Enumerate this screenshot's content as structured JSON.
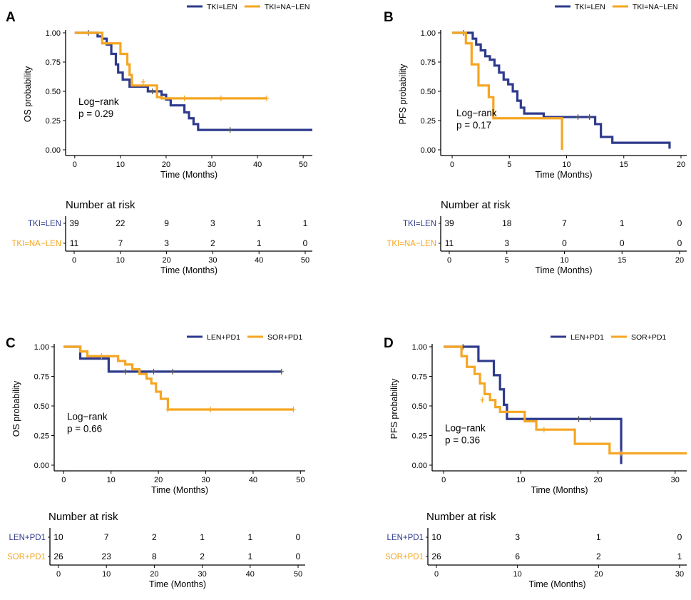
{
  "colors": {
    "blue": "#2e3a8c",
    "orange": "#f5a623"
  },
  "chart_data": [
    {
      "type": "line",
      "panel": "A",
      "title": "",
      "ylabel": "OS probability",
      "xlabel": "Time (Months)",
      "xlim": [
        -2,
        52
      ],
      "ylim": [
        0,
        1
      ],
      "xticks": [
        0,
        10,
        20,
        30,
        40,
        50
      ],
      "yticks": [
        0,
        0.25,
        0.5,
        0.75,
        1
      ],
      "ytick_labels": [
        "0.00",
        "0.25",
        "0.50",
        "0.75",
        "1.00"
      ],
      "logrank": {
        "line1": "Log−rank",
        "line2": "p = 0.29"
      },
      "legend": [
        "TKI=LEN",
        "TKI=NA−LEN"
      ],
      "series": [
        {
          "name": "TKI=LEN",
          "color": "blue",
          "steps": [
            [
              0,
              1
            ],
            [
              4,
              1
            ],
            [
              5,
              0.97
            ],
            [
              6,
              0.95
            ],
            [
              7,
              0.9
            ],
            [
              8,
              0.82
            ],
            [
              9,
              0.73
            ],
            [
              9.5,
              0.66
            ],
            [
              10.5,
              0.6
            ],
            [
              12,
              0.54
            ],
            [
              16,
              0.5
            ],
            [
              19,
              0.47
            ],
            [
              20,
              0.43
            ],
            [
              21,
              0.38
            ],
            [
              24,
              0.32
            ],
            [
              25,
              0.27
            ],
            [
              26,
              0.22
            ],
            [
              27,
              0.17
            ],
            [
              52,
              0.17
            ]
          ],
          "censors": [
            [
              3,
              1
            ],
            [
              17,
              0.5
            ],
            [
              34,
              0.17
            ]
          ]
        },
        {
          "name": "TKI=NA−LEN",
          "color": "orange",
          "steps": [
            [
              0,
              1
            ],
            [
              5,
              1
            ],
            [
              6,
              0.91
            ],
            [
              10,
              0.82
            ],
            [
              11.5,
              0.73
            ],
            [
              12,
              0.64
            ],
            [
              12.5,
              0.55
            ],
            [
              18,
              0.45
            ],
            [
              19,
              0.44
            ],
            [
              42,
              0.44
            ]
          ],
          "censors": [
            [
              15,
              0.58
            ],
            [
              24,
              0.44
            ],
            [
              32,
              0.44
            ],
            [
              42,
              0.44
            ]
          ]
        }
      ],
      "risk": {
        "title": "Number at risk",
        "groups": [
          {
            "label": "TKI=LEN",
            "color": "blue",
            "values": [
              39,
              22,
              9,
              3,
              1,
              1
            ]
          },
          {
            "label": "TKI=NA−LEN",
            "color": "orange",
            "values": [
              11,
              7,
              3,
              2,
              1,
              0
            ]
          }
        ],
        "xticks": [
          0,
          10,
          20,
          30,
          40,
          50
        ],
        "xlabel": "Time (Months)"
      }
    },
    {
      "type": "line",
      "panel": "B",
      "ylabel": "PFS probability",
      "xlabel": "Time (Months)",
      "xlim": [
        -1,
        20.5
      ],
      "ylim": [
        0,
        1
      ],
      "xticks": [
        0,
        5,
        10,
        15,
        20
      ],
      "yticks": [
        0,
        0.25,
        0.5,
        0.75,
        1
      ],
      "ytick_labels": [
        "0.00",
        "0.25",
        "0.50",
        "0.75",
        "1.00"
      ],
      "logrank": {
        "line1": "Log−rank",
        "line2": "p = 0.17"
      },
      "legend": [
        "TKI=LEN",
        "TKI=NA−LEN"
      ],
      "series": [
        {
          "name": "TKI=LEN",
          "color": "blue",
          "steps": [
            [
              0,
              1
            ],
            [
              1.5,
              1
            ],
            [
              1.8,
              0.95
            ],
            [
              2.1,
              0.9
            ],
            [
              2.5,
              0.85
            ],
            [
              2.9,
              0.8
            ],
            [
              3.3,
              0.77
            ],
            [
              3.7,
              0.72
            ],
            [
              4.1,
              0.66
            ],
            [
              4.5,
              0.6
            ],
            [
              4.9,
              0.56
            ],
            [
              5.3,
              0.5
            ],
            [
              5.7,
              0.42
            ],
            [
              6,
              0.36
            ],
            [
              6.3,
              0.31
            ],
            [
              8,
              0.28
            ],
            [
              12.5,
              0.22
            ],
            [
              13,
              0.11
            ],
            [
              14,
              0.06
            ],
            [
              19,
              0.06
            ],
            [
              19,
              0.01
            ]
          ],
          "censors": [
            [
              1,
              1
            ],
            [
              11,
              0.28
            ],
            [
              12,
              0.28
            ]
          ]
        },
        {
          "name": "TKI=NA−LEN",
          "color": "orange",
          "steps": [
            [
              0,
              1
            ],
            [
              1,
              1
            ],
            [
              1.2,
              0.91
            ],
            [
              1.7,
              0.73
            ],
            [
              2.3,
              0.55
            ],
            [
              3.2,
              0.45
            ],
            [
              3.6,
              0.27
            ],
            [
              9.6,
              0.27
            ],
            [
              9.6,
              0
            ]
          ],
          "censors": []
        }
      ],
      "risk": {
        "title": "Number at risk",
        "groups": [
          {
            "label": "TKI=LEN",
            "color": "blue",
            "values": [
              39,
              18,
              7,
              1,
              0
            ]
          },
          {
            "label": "TKI=NA−LEN",
            "color": "orange",
            "values": [
              11,
              3,
              0,
              0,
              0
            ]
          }
        ],
        "xticks": [
          0,
          5,
          10,
          15,
          20
        ],
        "xlabel": "Time (Months)"
      }
    },
    {
      "type": "line",
      "panel": "C",
      "ylabel": "OS probability",
      "xlabel": "Time (Months)",
      "xlim": [
        -2,
        51
      ],
      "ylim": [
        0,
        1
      ],
      "xticks": [
        0,
        10,
        20,
        30,
        40,
        50
      ],
      "yticks": [
        0,
        0.25,
        0.5,
        0.75,
        1
      ],
      "ytick_labels": [
        "0.00",
        "0.25",
        "0.50",
        "0.75",
        "1.00"
      ],
      "logrank": {
        "line1": "Log−rank",
        "line2": "p = 0.66"
      },
      "legend": [
        "LEN+PD1",
        "SOR+PD1"
      ],
      "series": [
        {
          "name": "LEN+PD1",
          "color": "blue",
          "steps": [
            [
              0,
              1
            ],
            [
              3,
              1
            ],
            [
              3.5,
              0.9
            ],
            [
              9.5,
              0.79
            ],
            [
              46,
              0.79
            ]
          ],
          "censors": [
            [
              13,
              0.79
            ],
            [
              16,
              0.79
            ],
            [
              19,
              0.79
            ],
            [
              23,
              0.79
            ],
            [
              46,
              0.79
            ]
          ]
        },
        {
          "name": "SOR+PD1",
          "color": "orange",
          "steps": [
            [
              0,
              1
            ],
            [
              2.5,
              1
            ],
            [
              3.5,
              0.96
            ],
            [
              5,
              0.92
            ],
            [
              11.5,
              0.88
            ],
            [
              13,
              0.85
            ],
            [
              14.5,
              0.81
            ],
            [
              16,
              0.77
            ],
            [
              17.5,
              0.73
            ],
            [
              18.5,
              0.69
            ],
            [
              19.5,
              0.62
            ],
            [
              20.5,
              0.56
            ],
            [
              22,
              0.47
            ],
            [
              48.5,
              0.47
            ]
          ],
          "censors": [
            [
              8,
              0.92
            ],
            [
              22,
              0.47
            ],
            [
              31,
              0.47
            ],
            [
              48.5,
              0.47
            ]
          ]
        }
      ],
      "risk": {
        "title": "Number at risk",
        "groups": [
          {
            "label": "LEN+PD1",
            "color": "blue",
            "values": [
              10,
              7,
              2,
              1,
              1,
              0
            ]
          },
          {
            "label": "SOR+PD1",
            "color": "orange",
            "values": [
              26,
              23,
              8,
              2,
              1,
              0
            ]
          }
        ],
        "xticks": [
          0,
          10,
          20,
          30,
          40,
          50
        ],
        "xlabel": "Time (Months)"
      }
    },
    {
      "type": "line",
      "panel": "D",
      "ylabel": "PFS probability",
      "xlabel": "Time (Months)",
      "xlim": [
        -1.5,
        31.5
      ],
      "ylim": [
        0,
        1
      ],
      "xticks": [
        0,
        10,
        20,
        30
      ],
      "yticks": [
        0,
        0.25,
        0.5,
        0.75,
        1
      ],
      "ytick_labels": [
        "0.00",
        "0.25",
        "0.50",
        "0.75",
        "1.00"
      ],
      "logrank": {
        "line1": "Log−rank",
        "line2": "p = 0.36"
      },
      "legend": [
        "LEN+PD1",
        "SOR+PD1"
      ],
      "series": [
        {
          "name": "LEN+PD1",
          "color": "blue",
          "steps": [
            [
              0,
              1
            ],
            [
              4,
              1
            ],
            [
              4.5,
              0.88
            ],
            [
              6.5,
              0.76
            ],
            [
              7.3,
              0.64
            ],
            [
              7.8,
              0.51
            ],
            [
              8.2,
              0.39
            ],
            [
              23,
              0.39
            ],
            [
              23,
              0.01
            ]
          ],
          "censors": [
            [
              2.5,
              1
            ],
            [
              17.5,
              0.39
            ],
            [
              19,
              0.39
            ]
          ]
        },
        {
          "name": "SOR+PD1",
          "color": "orange",
          "steps": [
            [
              0,
              1
            ],
            [
              2,
              1
            ],
            [
              2.3,
              0.92
            ],
            [
              3,
              0.83
            ],
            [
              4,
              0.77
            ],
            [
              4.7,
              0.69
            ],
            [
              5.3,
              0.6
            ],
            [
              6,
              0.55
            ],
            [
              6.7,
              0.49
            ],
            [
              7.3,
              0.45
            ],
            [
              10.5,
              0.37
            ],
            [
              12,
              0.3
            ],
            [
              17,
              0.18
            ],
            [
              21.5,
              0.1
            ],
            [
              31.5,
              0.1
            ]
          ],
          "censors": [
            [
              5,
              0.55
            ],
            [
              13,
              0.3
            ],
            [
              23,
              0.1
            ]
          ]
        }
      ],
      "risk": {
        "title": "Number at risk",
        "groups": [
          {
            "label": "LEN+PD1",
            "color": "blue",
            "values": [
              10,
              3,
              1,
              0
            ]
          },
          {
            "label": "SOR+PD1",
            "color": "orange",
            "values": [
              26,
              6,
              2,
              1
            ]
          }
        ],
        "xticks": [
          0,
          10,
          20,
          30
        ],
        "xlabel": "Time (Months)"
      }
    }
  ]
}
